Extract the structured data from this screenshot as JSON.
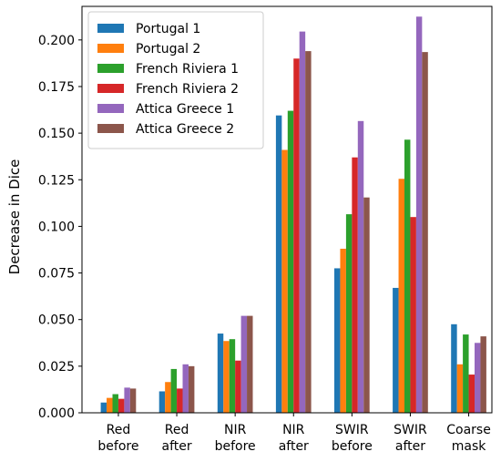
{
  "chart_data": {
    "type": "bar",
    "title": "",
    "xlabel": "",
    "ylabel": "Decrease in Dice",
    "ylim": [
      0,
      0.218
    ],
    "grid": false,
    "legend_position": "top-left",
    "categories": [
      [
        "Red",
        "before"
      ],
      [
        "Red",
        "after"
      ],
      [
        "NIR",
        "before"
      ],
      [
        "NIR",
        "after"
      ],
      [
        "SWIR",
        "before"
      ],
      [
        "SWIR",
        "after"
      ],
      [
        "Coarse",
        "mask"
      ]
    ],
    "yticks": [
      "0.000",
      "0.025",
      "0.050",
      "0.075",
      "0.100",
      "0.125",
      "0.150",
      "0.175",
      "0.200"
    ],
    "series": [
      {
        "name": "Portugal 1",
        "color": "#1f77b4",
        "values": [
          0.0055,
          0.0115,
          0.0425,
          0.1595,
          0.0775,
          0.067,
          0.0475
        ]
      },
      {
        "name": "Portugal 2",
        "color": "#ff7f0e",
        "values": [
          0.008,
          0.0165,
          0.0385,
          0.141,
          0.088,
          0.1255,
          0.026
        ]
      },
      {
        "name": "French Riviera 1",
        "color": "#2ca02c",
        "values": [
          0.01,
          0.0235,
          0.0395,
          0.162,
          0.1065,
          0.1465,
          0.042
        ]
      },
      {
        "name": "French Riviera 2",
        "color": "#d62728",
        "values": [
          0.0075,
          0.013,
          0.028,
          0.19,
          0.137,
          0.105,
          0.0205
        ]
      },
      {
        "name": "Attica Greece 1",
        "color": "#9467bd",
        "values": [
          0.0135,
          0.026,
          0.052,
          0.2045,
          0.1565,
          0.2125,
          0.0375
        ]
      },
      {
        "name": "Attica Greece 2",
        "color": "#8c564b",
        "values": [
          0.013,
          0.025,
          0.052,
          0.194,
          0.1155,
          0.1935,
          0.041
        ]
      }
    ]
  }
}
